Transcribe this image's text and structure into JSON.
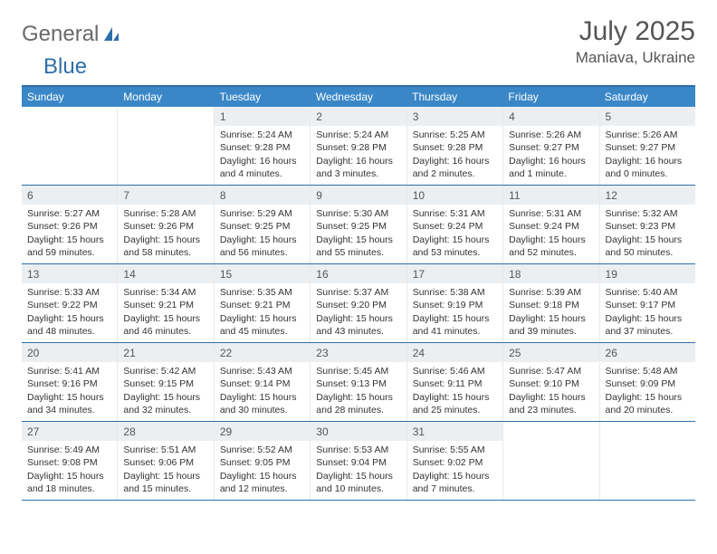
{
  "logo": {
    "text1": "General",
    "text2": "Blue"
  },
  "header": {
    "month": "July 2025",
    "location": "Maniava, Ukraine"
  },
  "colors": {
    "header_bar": "#3a87c8",
    "rule": "#2f6fa8",
    "daynum_bg": "#eceff2",
    "text": "#333333",
    "muted": "#555555"
  },
  "weekdays": [
    "Sunday",
    "Monday",
    "Tuesday",
    "Wednesday",
    "Thursday",
    "Friday",
    "Saturday"
  ],
  "weeks": [
    [
      {
        "empty": true
      },
      {
        "empty": true
      },
      {
        "n": "1",
        "sr": "Sunrise: 5:24 AM",
        "ss": "Sunset: 9:28 PM",
        "d1": "Daylight: 16 hours",
        "d2": "and 4 minutes."
      },
      {
        "n": "2",
        "sr": "Sunrise: 5:24 AM",
        "ss": "Sunset: 9:28 PM",
        "d1": "Daylight: 16 hours",
        "d2": "and 3 minutes."
      },
      {
        "n": "3",
        "sr": "Sunrise: 5:25 AM",
        "ss": "Sunset: 9:28 PM",
        "d1": "Daylight: 16 hours",
        "d2": "and 2 minutes."
      },
      {
        "n": "4",
        "sr": "Sunrise: 5:26 AM",
        "ss": "Sunset: 9:27 PM",
        "d1": "Daylight: 16 hours",
        "d2": "and 1 minute."
      },
      {
        "n": "5",
        "sr": "Sunrise: 5:26 AM",
        "ss": "Sunset: 9:27 PM",
        "d1": "Daylight: 16 hours",
        "d2": "and 0 minutes."
      }
    ],
    [
      {
        "n": "6",
        "sr": "Sunrise: 5:27 AM",
        "ss": "Sunset: 9:26 PM",
        "d1": "Daylight: 15 hours",
        "d2": "and 59 minutes."
      },
      {
        "n": "7",
        "sr": "Sunrise: 5:28 AM",
        "ss": "Sunset: 9:26 PM",
        "d1": "Daylight: 15 hours",
        "d2": "and 58 minutes."
      },
      {
        "n": "8",
        "sr": "Sunrise: 5:29 AM",
        "ss": "Sunset: 9:25 PM",
        "d1": "Daylight: 15 hours",
        "d2": "and 56 minutes."
      },
      {
        "n": "9",
        "sr": "Sunrise: 5:30 AM",
        "ss": "Sunset: 9:25 PM",
        "d1": "Daylight: 15 hours",
        "d2": "and 55 minutes."
      },
      {
        "n": "10",
        "sr": "Sunrise: 5:31 AM",
        "ss": "Sunset: 9:24 PM",
        "d1": "Daylight: 15 hours",
        "d2": "and 53 minutes."
      },
      {
        "n": "11",
        "sr": "Sunrise: 5:31 AM",
        "ss": "Sunset: 9:24 PM",
        "d1": "Daylight: 15 hours",
        "d2": "and 52 minutes."
      },
      {
        "n": "12",
        "sr": "Sunrise: 5:32 AM",
        "ss": "Sunset: 9:23 PM",
        "d1": "Daylight: 15 hours",
        "d2": "and 50 minutes."
      }
    ],
    [
      {
        "n": "13",
        "sr": "Sunrise: 5:33 AM",
        "ss": "Sunset: 9:22 PM",
        "d1": "Daylight: 15 hours",
        "d2": "and 48 minutes."
      },
      {
        "n": "14",
        "sr": "Sunrise: 5:34 AM",
        "ss": "Sunset: 9:21 PM",
        "d1": "Daylight: 15 hours",
        "d2": "and 46 minutes."
      },
      {
        "n": "15",
        "sr": "Sunrise: 5:35 AM",
        "ss": "Sunset: 9:21 PM",
        "d1": "Daylight: 15 hours",
        "d2": "and 45 minutes."
      },
      {
        "n": "16",
        "sr": "Sunrise: 5:37 AM",
        "ss": "Sunset: 9:20 PM",
        "d1": "Daylight: 15 hours",
        "d2": "and 43 minutes."
      },
      {
        "n": "17",
        "sr": "Sunrise: 5:38 AM",
        "ss": "Sunset: 9:19 PM",
        "d1": "Daylight: 15 hours",
        "d2": "and 41 minutes."
      },
      {
        "n": "18",
        "sr": "Sunrise: 5:39 AM",
        "ss": "Sunset: 9:18 PM",
        "d1": "Daylight: 15 hours",
        "d2": "and 39 minutes."
      },
      {
        "n": "19",
        "sr": "Sunrise: 5:40 AM",
        "ss": "Sunset: 9:17 PM",
        "d1": "Daylight: 15 hours",
        "d2": "and 37 minutes."
      }
    ],
    [
      {
        "n": "20",
        "sr": "Sunrise: 5:41 AM",
        "ss": "Sunset: 9:16 PM",
        "d1": "Daylight: 15 hours",
        "d2": "and 34 minutes."
      },
      {
        "n": "21",
        "sr": "Sunrise: 5:42 AM",
        "ss": "Sunset: 9:15 PM",
        "d1": "Daylight: 15 hours",
        "d2": "and 32 minutes."
      },
      {
        "n": "22",
        "sr": "Sunrise: 5:43 AM",
        "ss": "Sunset: 9:14 PM",
        "d1": "Daylight: 15 hours",
        "d2": "and 30 minutes."
      },
      {
        "n": "23",
        "sr": "Sunrise: 5:45 AM",
        "ss": "Sunset: 9:13 PM",
        "d1": "Daylight: 15 hours",
        "d2": "and 28 minutes."
      },
      {
        "n": "24",
        "sr": "Sunrise: 5:46 AM",
        "ss": "Sunset: 9:11 PM",
        "d1": "Daylight: 15 hours",
        "d2": "and 25 minutes."
      },
      {
        "n": "25",
        "sr": "Sunrise: 5:47 AM",
        "ss": "Sunset: 9:10 PM",
        "d1": "Daylight: 15 hours",
        "d2": "and 23 minutes."
      },
      {
        "n": "26",
        "sr": "Sunrise: 5:48 AM",
        "ss": "Sunset: 9:09 PM",
        "d1": "Daylight: 15 hours",
        "d2": "and 20 minutes."
      }
    ],
    [
      {
        "n": "27",
        "sr": "Sunrise: 5:49 AM",
        "ss": "Sunset: 9:08 PM",
        "d1": "Daylight: 15 hours",
        "d2": "and 18 minutes."
      },
      {
        "n": "28",
        "sr": "Sunrise: 5:51 AM",
        "ss": "Sunset: 9:06 PM",
        "d1": "Daylight: 15 hours",
        "d2": "and 15 minutes."
      },
      {
        "n": "29",
        "sr": "Sunrise: 5:52 AM",
        "ss": "Sunset: 9:05 PM",
        "d1": "Daylight: 15 hours",
        "d2": "and 12 minutes."
      },
      {
        "n": "30",
        "sr": "Sunrise: 5:53 AM",
        "ss": "Sunset: 9:04 PM",
        "d1": "Daylight: 15 hours",
        "d2": "and 10 minutes."
      },
      {
        "n": "31",
        "sr": "Sunrise: 5:55 AM",
        "ss": "Sunset: 9:02 PM",
        "d1": "Daylight: 15 hours",
        "d2": "and 7 minutes."
      },
      {
        "empty": true
      },
      {
        "empty": true
      }
    ]
  ]
}
